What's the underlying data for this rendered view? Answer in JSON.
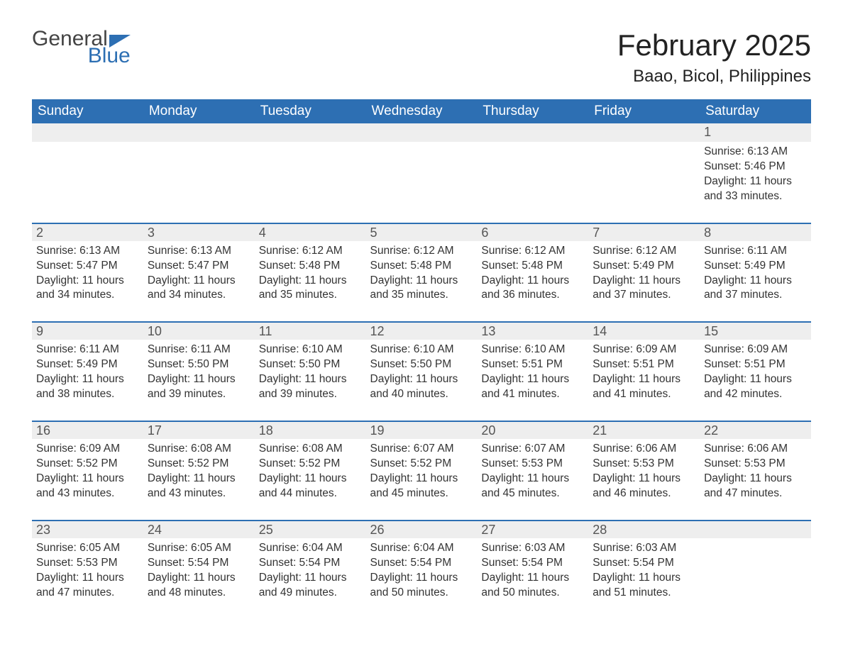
{
  "logo": {
    "text_general": "General",
    "text_blue": "Blue",
    "brand_color": "#2d6fb3"
  },
  "header": {
    "month_title": "February 2025",
    "location": "Baao, Bicol, Philippines"
  },
  "colors": {
    "header_bg": "#2d6fb3",
    "header_text": "#ffffff",
    "daynum_bg": "#eeeeee",
    "row_divider": "#2d6fb3",
    "body_text": "#333333",
    "page_bg": "#ffffff"
  },
  "typography": {
    "month_title_fontsize": 42,
    "location_fontsize": 24,
    "dow_fontsize": 19,
    "daynum_fontsize": 18,
    "body_fontsize": 15.5,
    "font_family": "Arial"
  },
  "calendar": {
    "type": "table",
    "days_of_week": [
      "Sunday",
      "Monday",
      "Tuesday",
      "Wednesday",
      "Thursday",
      "Friday",
      "Saturday"
    ],
    "weeks": [
      [
        null,
        null,
        null,
        null,
        null,
        null,
        {
          "day": "1",
          "sunrise": "Sunrise: 6:13 AM",
          "sunset": "Sunset: 5:46 PM",
          "daylight": "Daylight: 11 hours and 33 minutes."
        }
      ],
      [
        {
          "day": "2",
          "sunrise": "Sunrise: 6:13 AM",
          "sunset": "Sunset: 5:47 PM",
          "daylight": "Daylight: 11 hours and 34 minutes."
        },
        {
          "day": "3",
          "sunrise": "Sunrise: 6:13 AM",
          "sunset": "Sunset: 5:47 PM",
          "daylight": "Daylight: 11 hours and 34 minutes."
        },
        {
          "day": "4",
          "sunrise": "Sunrise: 6:12 AM",
          "sunset": "Sunset: 5:48 PM",
          "daylight": "Daylight: 11 hours and 35 minutes."
        },
        {
          "day": "5",
          "sunrise": "Sunrise: 6:12 AM",
          "sunset": "Sunset: 5:48 PM",
          "daylight": "Daylight: 11 hours and 35 minutes."
        },
        {
          "day": "6",
          "sunrise": "Sunrise: 6:12 AM",
          "sunset": "Sunset: 5:48 PM",
          "daylight": "Daylight: 11 hours and 36 minutes."
        },
        {
          "day": "7",
          "sunrise": "Sunrise: 6:12 AM",
          "sunset": "Sunset: 5:49 PM",
          "daylight": "Daylight: 11 hours and 37 minutes."
        },
        {
          "day": "8",
          "sunrise": "Sunrise: 6:11 AM",
          "sunset": "Sunset: 5:49 PM",
          "daylight": "Daylight: 11 hours and 37 minutes."
        }
      ],
      [
        {
          "day": "9",
          "sunrise": "Sunrise: 6:11 AM",
          "sunset": "Sunset: 5:49 PM",
          "daylight": "Daylight: 11 hours and 38 minutes."
        },
        {
          "day": "10",
          "sunrise": "Sunrise: 6:11 AM",
          "sunset": "Sunset: 5:50 PM",
          "daylight": "Daylight: 11 hours and 39 minutes."
        },
        {
          "day": "11",
          "sunrise": "Sunrise: 6:10 AM",
          "sunset": "Sunset: 5:50 PM",
          "daylight": "Daylight: 11 hours and 39 minutes."
        },
        {
          "day": "12",
          "sunrise": "Sunrise: 6:10 AM",
          "sunset": "Sunset: 5:50 PM",
          "daylight": "Daylight: 11 hours and 40 minutes."
        },
        {
          "day": "13",
          "sunrise": "Sunrise: 6:10 AM",
          "sunset": "Sunset: 5:51 PM",
          "daylight": "Daylight: 11 hours and 41 minutes."
        },
        {
          "day": "14",
          "sunrise": "Sunrise: 6:09 AM",
          "sunset": "Sunset: 5:51 PM",
          "daylight": "Daylight: 11 hours and 41 minutes."
        },
        {
          "day": "15",
          "sunrise": "Sunrise: 6:09 AM",
          "sunset": "Sunset: 5:51 PM",
          "daylight": "Daylight: 11 hours and 42 minutes."
        }
      ],
      [
        {
          "day": "16",
          "sunrise": "Sunrise: 6:09 AM",
          "sunset": "Sunset: 5:52 PM",
          "daylight": "Daylight: 11 hours and 43 minutes."
        },
        {
          "day": "17",
          "sunrise": "Sunrise: 6:08 AM",
          "sunset": "Sunset: 5:52 PM",
          "daylight": "Daylight: 11 hours and 43 minutes."
        },
        {
          "day": "18",
          "sunrise": "Sunrise: 6:08 AM",
          "sunset": "Sunset: 5:52 PM",
          "daylight": "Daylight: 11 hours and 44 minutes."
        },
        {
          "day": "19",
          "sunrise": "Sunrise: 6:07 AM",
          "sunset": "Sunset: 5:52 PM",
          "daylight": "Daylight: 11 hours and 45 minutes."
        },
        {
          "day": "20",
          "sunrise": "Sunrise: 6:07 AM",
          "sunset": "Sunset: 5:53 PM",
          "daylight": "Daylight: 11 hours and 45 minutes."
        },
        {
          "day": "21",
          "sunrise": "Sunrise: 6:06 AM",
          "sunset": "Sunset: 5:53 PM",
          "daylight": "Daylight: 11 hours and 46 minutes."
        },
        {
          "day": "22",
          "sunrise": "Sunrise: 6:06 AM",
          "sunset": "Sunset: 5:53 PM",
          "daylight": "Daylight: 11 hours and 47 minutes."
        }
      ],
      [
        {
          "day": "23",
          "sunrise": "Sunrise: 6:05 AM",
          "sunset": "Sunset: 5:53 PM",
          "daylight": "Daylight: 11 hours and 47 minutes."
        },
        {
          "day": "24",
          "sunrise": "Sunrise: 6:05 AM",
          "sunset": "Sunset: 5:54 PM",
          "daylight": "Daylight: 11 hours and 48 minutes."
        },
        {
          "day": "25",
          "sunrise": "Sunrise: 6:04 AM",
          "sunset": "Sunset: 5:54 PM",
          "daylight": "Daylight: 11 hours and 49 minutes."
        },
        {
          "day": "26",
          "sunrise": "Sunrise: 6:04 AM",
          "sunset": "Sunset: 5:54 PM",
          "daylight": "Daylight: 11 hours and 50 minutes."
        },
        {
          "day": "27",
          "sunrise": "Sunrise: 6:03 AM",
          "sunset": "Sunset: 5:54 PM",
          "daylight": "Daylight: 11 hours and 50 minutes."
        },
        {
          "day": "28",
          "sunrise": "Sunrise: 6:03 AM",
          "sunset": "Sunset: 5:54 PM",
          "daylight": "Daylight: 11 hours and 51 minutes."
        },
        null
      ]
    ]
  }
}
